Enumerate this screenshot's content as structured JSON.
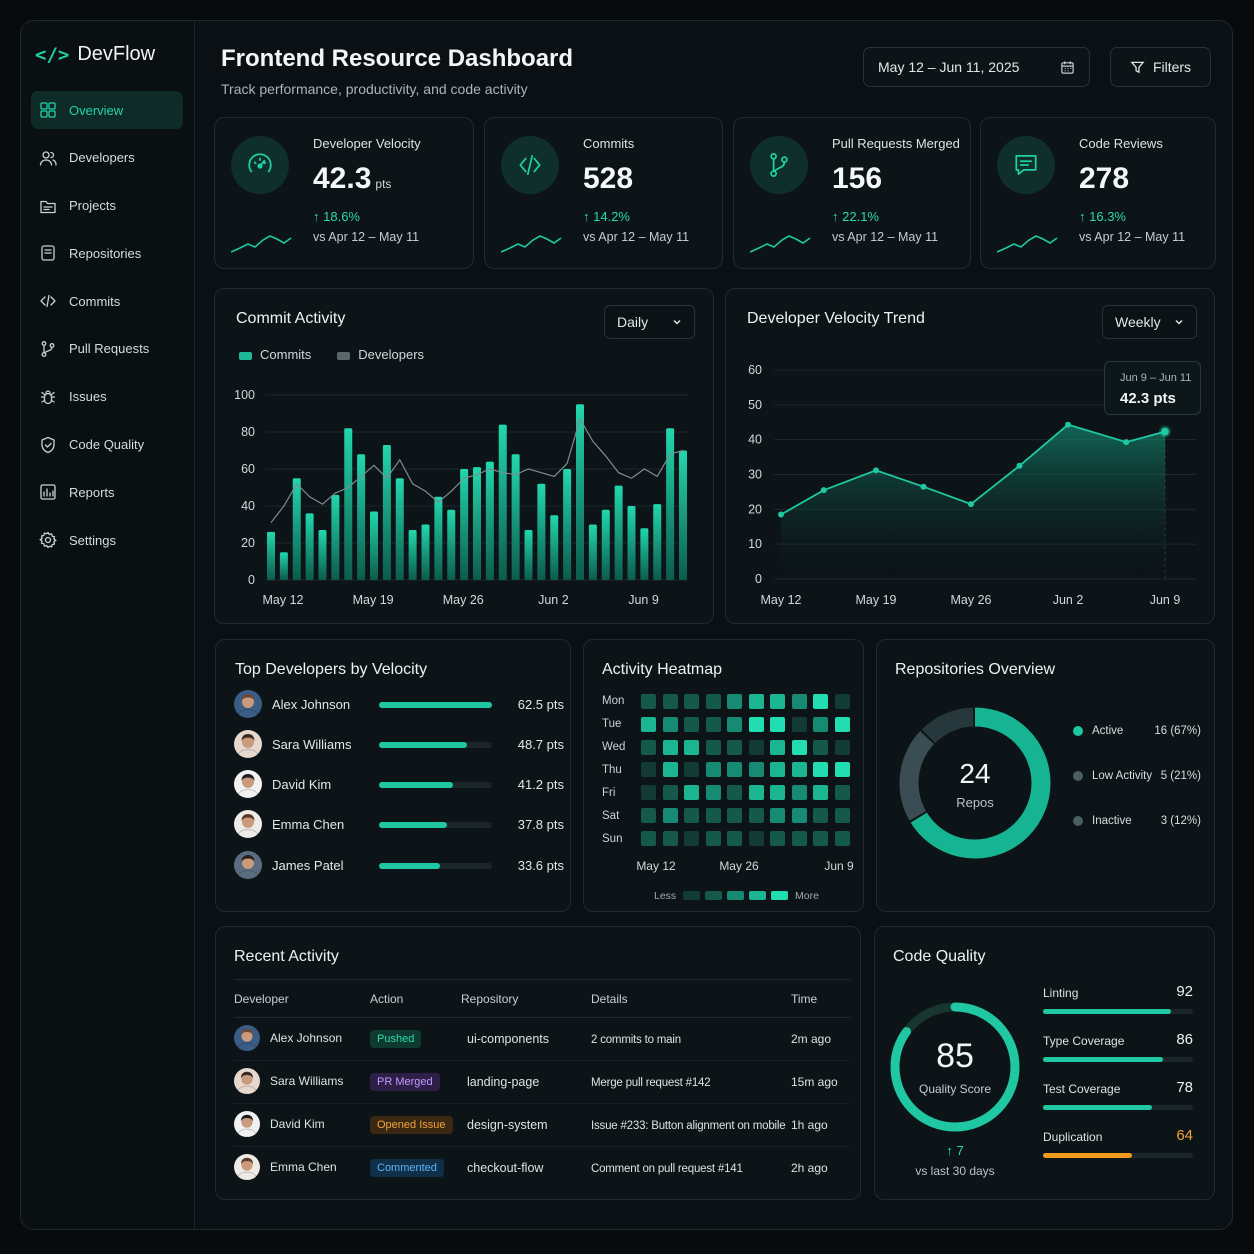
{
  "brand": {
    "name": "DevFlow"
  },
  "nav": [
    {
      "label": "Overview",
      "icon": "grid-icon",
      "active": true
    },
    {
      "label": "Developers",
      "icon": "users-icon"
    },
    {
      "label": "Projects",
      "icon": "folder-icon"
    },
    {
      "label": "Repositories",
      "icon": "repo-icon"
    },
    {
      "label": "Commits",
      "icon": "code-icon"
    },
    {
      "label": "Pull Requests",
      "icon": "git-branch-icon"
    },
    {
      "label": "Issues",
      "icon": "bug-icon"
    },
    {
      "label": "Code Quality",
      "icon": "shield-icon"
    },
    {
      "label": "Reports",
      "icon": "chart-icon"
    },
    {
      "label": "Settings",
      "icon": "gear-icon"
    }
  ],
  "header": {
    "title": "Frontend Resource Dashboard",
    "subtitle": "Track performance, productivity, and code activity",
    "date_range": "May 12 – Jun 11, 2025",
    "filters_label": "Filters"
  },
  "stats": [
    {
      "label": "Developer Velocity",
      "value": "42.3",
      "unit": "pts",
      "change": "18.6%",
      "compare": "vs Apr 12 – May 11",
      "icon": "speedometer-icon"
    },
    {
      "label": "Commits",
      "value": "528",
      "unit": "",
      "change": "14.2%",
      "compare": "vs Apr 12 – May 11",
      "icon": "code-icon"
    },
    {
      "label": "Pull Requests Merged",
      "value": "156",
      "unit": "",
      "change": "22.1%",
      "compare": "vs Apr 12 – May 11",
      "icon": "git-branch-icon"
    },
    {
      "label": "Code Reviews",
      "value": "278",
      "unit": "",
      "change": "16.3%",
      "compare": "vs Apr 12 – May 11",
      "icon": "message-icon"
    }
  ],
  "commit_activity": {
    "title": "Commit Activity",
    "period": "Daily",
    "legend": [
      "Commits",
      "Developers"
    ]
  },
  "velocity_trend": {
    "title": "Developer Velocity Trend",
    "period": "Weekly",
    "tooltip_date": "Jun 9 – Jun 11",
    "tooltip_value": "42.3 pts"
  },
  "chart_data": [
    {
      "type": "bar",
      "title": "Commit Activity",
      "xlabel": "",
      "ylabel": "",
      "ylim": [
        0,
        100
      ],
      "yticks": [
        0,
        20,
        40,
        60,
        80,
        100
      ],
      "xtick_labels": [
        "May 12",
        "May 19",
        "May 26",
        "Jun 2",
        "Jun 9"
      ],
      "xtick_index": [
        0,
        7,
        14,
        21,
        28
      ],
      "series": [
        {
          "name": "Commits",
          "type": "bar",
          "values": [
            26,
            15,
            55,
            36,
            27,
            46,
            82,
            68,
            37,
            73,
            55,
            27,
            30,
            45,
            38,
            60,
            61,
            64,
            84,
            68,
            27,
            52,
            35,
            60,
            95,
            30,
            38,
            51,
            40,
            28,
            41,
            82,
            70
          ]
        },
        {
          "name": "Developers",
          "type": "line",
          "values": [
            31,
            40,
            52,
            45,
            41,
            47,
            50,
            56,
            62,
            55,
            65,
            52,
            48,
            42,
            48,
            55,
            57,
            60,
            58,
            57,
            60,
            58,
            56,
            63,
            87,
            75,
            67,
            58,
            55,
            60,
            56,
            68,
            70
          ]
        }
      ]
    },
    {
      "type": "line",
      "title": "Developer Velocity Trend",
      "ylim": [
        0,
        60
      ],
      "yticks": [
        0,
        10,
        20,
        30,
        40,
        50,
        60
      ],
      "xtick_labels": [
        "May 12",
        "May 19",
        "May 26",
        "Jun 2",
        "Jun 9"
      ],
      "series": [
        {
          "name": "Velocity",
          "x": [
            0,
            0.45,
            1.0,
            1.5,
            2.0,
            2.5,
            3.0,
            3.6,
            4.0
          ],
          "values": [
            18.5,
            25.5,
            31.2,
            26.5,
            21.5,
            32.5,
            44.3,
            39.3,
            42.3
          ]
        }
      ]
    }
  ],
  "top_devs": {
    "title": "Top Developers by Velocity",
    "max": 62.5,
    "rows": [
      {
        "name": "Alex Johnson",
        "value": 62.5,
        "label": "62.5 pts"
      },
      {
        "name": "Sara Williams",
        "value": 48.7,
        "label": "48.7 pts"
      },
      {
        "name": "David Kim",
        "value": 41.2,
        "label": "41.2 pts"
      },
      {
        "name": "Emma Chen",
        "value": 37.8,
        "label": "37.8 pts"
      },
      {
        "name": "James Patel",
        "value": 33.6,
        "label": "33.6 pts"
      }
    ]
  },
  "heatmap": {
    "title": "Activity Heatmap",
    "days": [
      "Mon",
      "Tue",
      "Wed",
      "Thu",
      "Fri",
      "Sat",
      "Sun"
    ],
    "xlabels": [
      "May 12",
      "May 26",
      "Jun 9"
    ],
    "less": "Less",
    "more": "More",
    "levels": [
      [
        1,
        1,
        1,
        1,
        2,
        3,
        3,
        2,
        4,
        0
      ],
      [
        3,
        2,
        1,
        1,
        2,
        4,
        4,
        0,
        2,
        4
      ],
      [
        1,
        3,
        3,
        1,
        1,
        0,
        3,
        4,
        1,
        0
      ],
      [
        0,
        3,
        0,
        2,
        2,
        2,
        3,
        3,
        4,
        4
      ],
      [
        0,
        1,
        3,
        2,
        1,
        3,
        3,
        2,
        3,
        1
      ],
      [
        1,
        2,
        1,
        1,
        1,
        1,
        2,
        2,
        1,
        1
      ],
      [
        1,
        1,
        0,
        1,
        1,
        0,
        1,
        1,
        1,
        1
      ]
    ]
  },
  "repos": {
    "title": "Repositories Overview",
    "total": "24",
    "total_label": "Repos",
    "segments": [
      {
        "label": "Active",
        "value": 16,
        "text": "16 (67%)",
        "color": "#16b493"
      },
      {
        "label": "Low Activity",
        "value": 5,
        "text": "5 (21%)",
        "color": "#3a4d53"
      },
      {
        "label": "Inactive",
        "value": 3,
        "text": "3 (12%)",
        "color": "#27383d"
      }
    ]
  },
  "recent": {
    "title": "Recent Activity",
    "columns": [
      "Developer",
      "Action",
      "Repository",
      "Details",
      "Time"
    ],
    "rows": [
      {
        "dev": "Alex Johnson",
        "action": "Pushed",
        "kind": "pushed",
        "repo": "ui-components",
        "details": "2 commits to main",
        "time": "2m ago"
      },
      {
        "dev": "Sara Williams",
        "action": "PR Merged",
        "kind": "merged",
        "repo": "landing-page",
        "details": "Merge pull request #142",
        "time": "15m ago"
      },
      {
        "dev": "David Kim",
        "action": "Opened Issue",
        "kind": "issue",
        "repo": "design-system",
        "details": "Issue #233: Button alignment on mobile",
        "time": "1h ago"
      },
      {
        "dev": "Emma Chen",
        "action": "Commented",
        "kind": "comment",
        "repo": "checkout-flow",
        "details": "Comment on pull request #141",
        "time": "2h ago"
      }
    ]
  },
  "quality": {
    "title": "Code Quality",
    "score": "85",
    "score_label": "Quality Score",
    "score_value": 85,
    "delta": "7",
    "delta_label": "vs last 30 days",
    "metrics": [
      {
        "label": "Linting",
        "value": 92,
        "color": "#1fc8a2"
      },
      {
        "label": "Type Coverage",
        "value": 86,
        "color": "#1fc8a2"
      },
      {
        "label": "Test Coverage",
        "value": 78,
        "color": "#1fc8a2"
      },
      {
        "label": "Duplication",
        "value": 64,
        "color": "#f39a1e"
      }
    ]
  },
  "colors": {
    "accent": "#1fc8a2",
    "warning": "#f39a1e"
  }
}
